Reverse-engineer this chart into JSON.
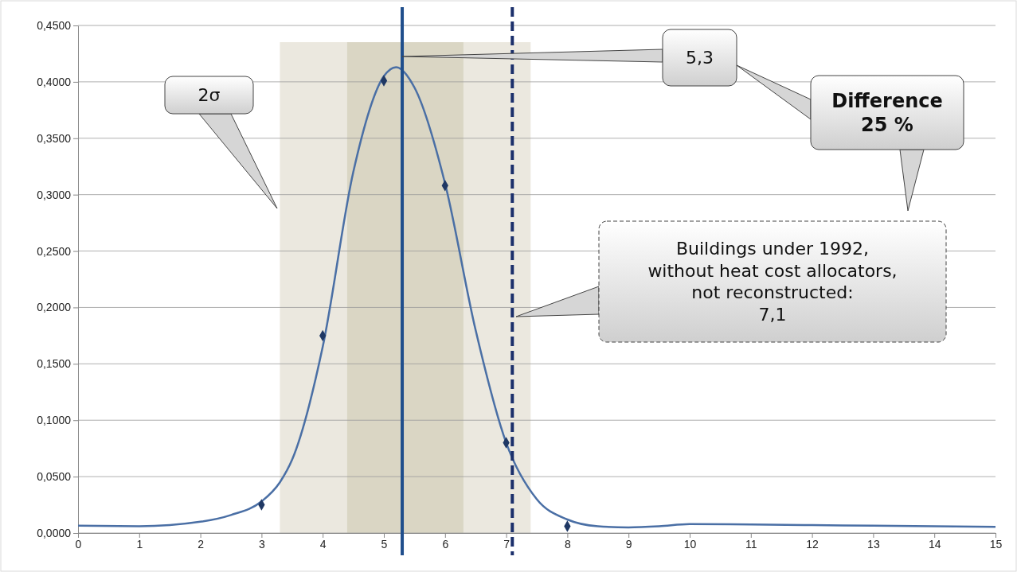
{
  "chart_data": {
    "type": "line",
    "x": [
      0,
      1,
      2,
      2.5,
      3,
      3.3,
      3.5,
      4,
      4.5,
      5,
      5.2,
      5.5,
      6,
      6.5,
      7,
      7.5,
      8,
      8.5,
      9,
      9.5,
      10,
      11,
      12,
      13,
      14,
      15
    ],
    "series": [
      {
        "color": "#4a6fa5",
        "values": [
          0.0065,
          0.006,
          0.01,
          0.016,
          0.028,
          0.045,
          0.065,
          0.165,
          0.32,
          0.405,
          0.413,
          0.395,
          0.31,
          0.18,
          0.08,
          0.03,
          0.012,
          0.006,
          0.005,
          0.006,
          0.008,
          0.0075,
          0.007,
          0.0065,
          0.006,
          0.0055
        ]
      },
      {
        "type": "scatter",
        "color": "#1f3864",
        "marker": "diamond",
        "x": [
          3,
          4,
          5,
          6,
          7,
          8
        ],
        "values": [
          0.025,
          0.175,
          0.401,
          0.308,
          0.08,
          0.006
        ]
      }
    ],
    "xlim": [
      0,
      15
    ],
    "xticks": [
      0,
      1,
      2,
      3,
      4,
      5,
      6,
      7,
      8,
      9,
      10,
      11,
      12,
      13,
      14,
      15
    ],
    "ylim": [
      0,
      0.45
    ],
    "yticks": [
      {
        "value": 0,
        "label": "0,0000"
      },
      {
        "value": 0.05,
        "label": "0,0500"
      },
      {
        "value": 0.1,
        "label": "0,1000"
      },
      {
        "value": 0.15,
        "label": "0,1500"
      },
      {
        "value": 0.2,
        "label": "0,2000"
      },
      {
        "value": 0.25,
        "label": "0,2500"
      },
      {
        "value": 0.3,
        "label": "0,3000"
      },
      {
        "value": 0.35,
        "label": "0,3500"
      },
      {
        "value": 0.4,
        "label": "0,4000"
      },
      {
        "value": 0.45,
        "label": "0,4500"
      }
    ],
    "grid": "y",
    "bands": [
      {
        "axis": "x",
        "from": 3.3,
        "to": 7.4,
        "color": "#ebe8df"
      },
      {
        "axis": "x",
        "from": 4.4,
        "to": 6.3,
        "color": "#dad6c4"
      }
    ],
    "ref_lines": [
      {
        "axis": "x",
        "value": 5.3,
        "color": "#1f4e8c",
        "line_style": "solid"
      },
      {
        "axis": "x",
        "value": 7.1,
        "color": "#1b2f6b",
        "line_style": "dashed"
      }
    ],
    "annotations": [
      "2σ",
      "5,3",
      "Difference\n25 %",
      "Buildings under 1992,\nwithout heat cost allocators,\nnot reconstructed:\n7,1"
    ]
  }
}
